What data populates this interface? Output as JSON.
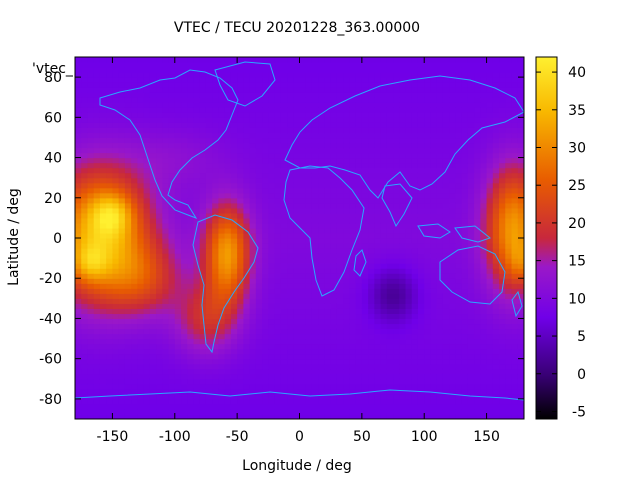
{
  "chart_data": {
    "type": "heatmap",
    "title": "VTEC / TECU 20201228_363.00000",
    "xlabel": "Longitude / deg",
    "ylabel": "Latitude / deg",
    "key_label": "'vtec_",
    "xlim": [
      -180,
      180
    ],
    "ylim": [
      -90,
      90
    ],
    "x_ticks": [
      -150,
      -100,
      -50,
      0,
      50,
      100,
      150
    ],
    "y_ticks": [
      -80,
      -60,
      -40,
      -20,
      0,
      20,
      40,
      60,
      80
    ],
    "colorbar": {
      "range": [
        -6,
        42
      ],
      "ticks": [
        -5,
        0,
        5,
        10,
        15,
        20,
        25,
        30,
        35,
        40
      ],
      "palette": [
        "#000000",
        "#3a0078",
        "#7000e8",
        "#9a18c8",
        "#c8283c",
        "#e85c00",
        "#f8b800",
        "#fff030"
      ]
    },
    "grid": false,
    "map_overlay": "continent-outlines",
    "features": [
      {
        "lon": -155,
        "lat": 10,
        "value": 42
      },
      {
        "lon": -165,
        "lat": -12,
        "value": 40
      },
      {
        "lon": -55,
        "lat": -8,
        "value": 34
      },
      {
        "lon": 165,
        "lat": 5,
        "value": 32
      },
      {
        "lon": 75,
        "lat": -28,
        "value": 3
      }
    ]
  }
}
